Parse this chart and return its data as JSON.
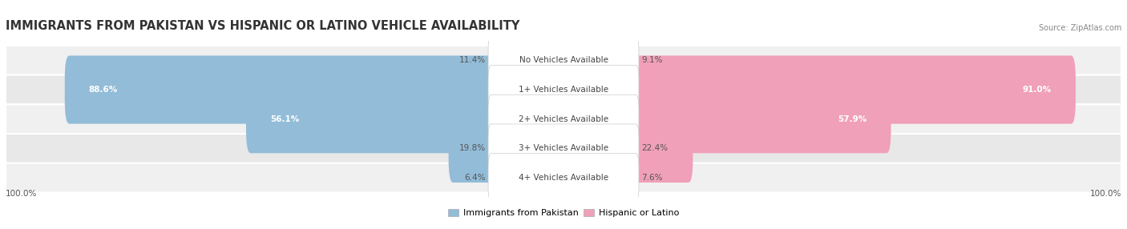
{
  "title": "IMMIGRANTS FROM PAKISTAN VS HISPANIC OR LATINO VEHICLE AVAILABILITY",
  "source": "Source: ZipAtlas.com",
  "categories": [
    "No Vehicles Available",
    "1+ Vehicles Available",
    "2+ Vehicles Available",
    "3+ Vehicles Available",
    "4+ Vehicles Available"
  ],
  "pakistan_values": [
    11.4,
    88.6,
    56.1,
    19.8,
    6.4
  ],
  "hispanic_values": [
    9.1,
    91.0,
    57.9,
    22.4,
    7.6
  ],
  "pakistan_color": "#92bcd8",
  "hispanic_color": "#f0a0b8",
  "row_bg_even": "#f0f0f0",
  "row_bg_odd": "#e8e8e8",
  "title_fontsize": 10.5,
  "label_fontsize": 7.5,
  "value_fontsize": 7.5,
  "legend_fontsize": 8,
  "bg_color": "#ffffff",
  "max_val": 100.0
}
